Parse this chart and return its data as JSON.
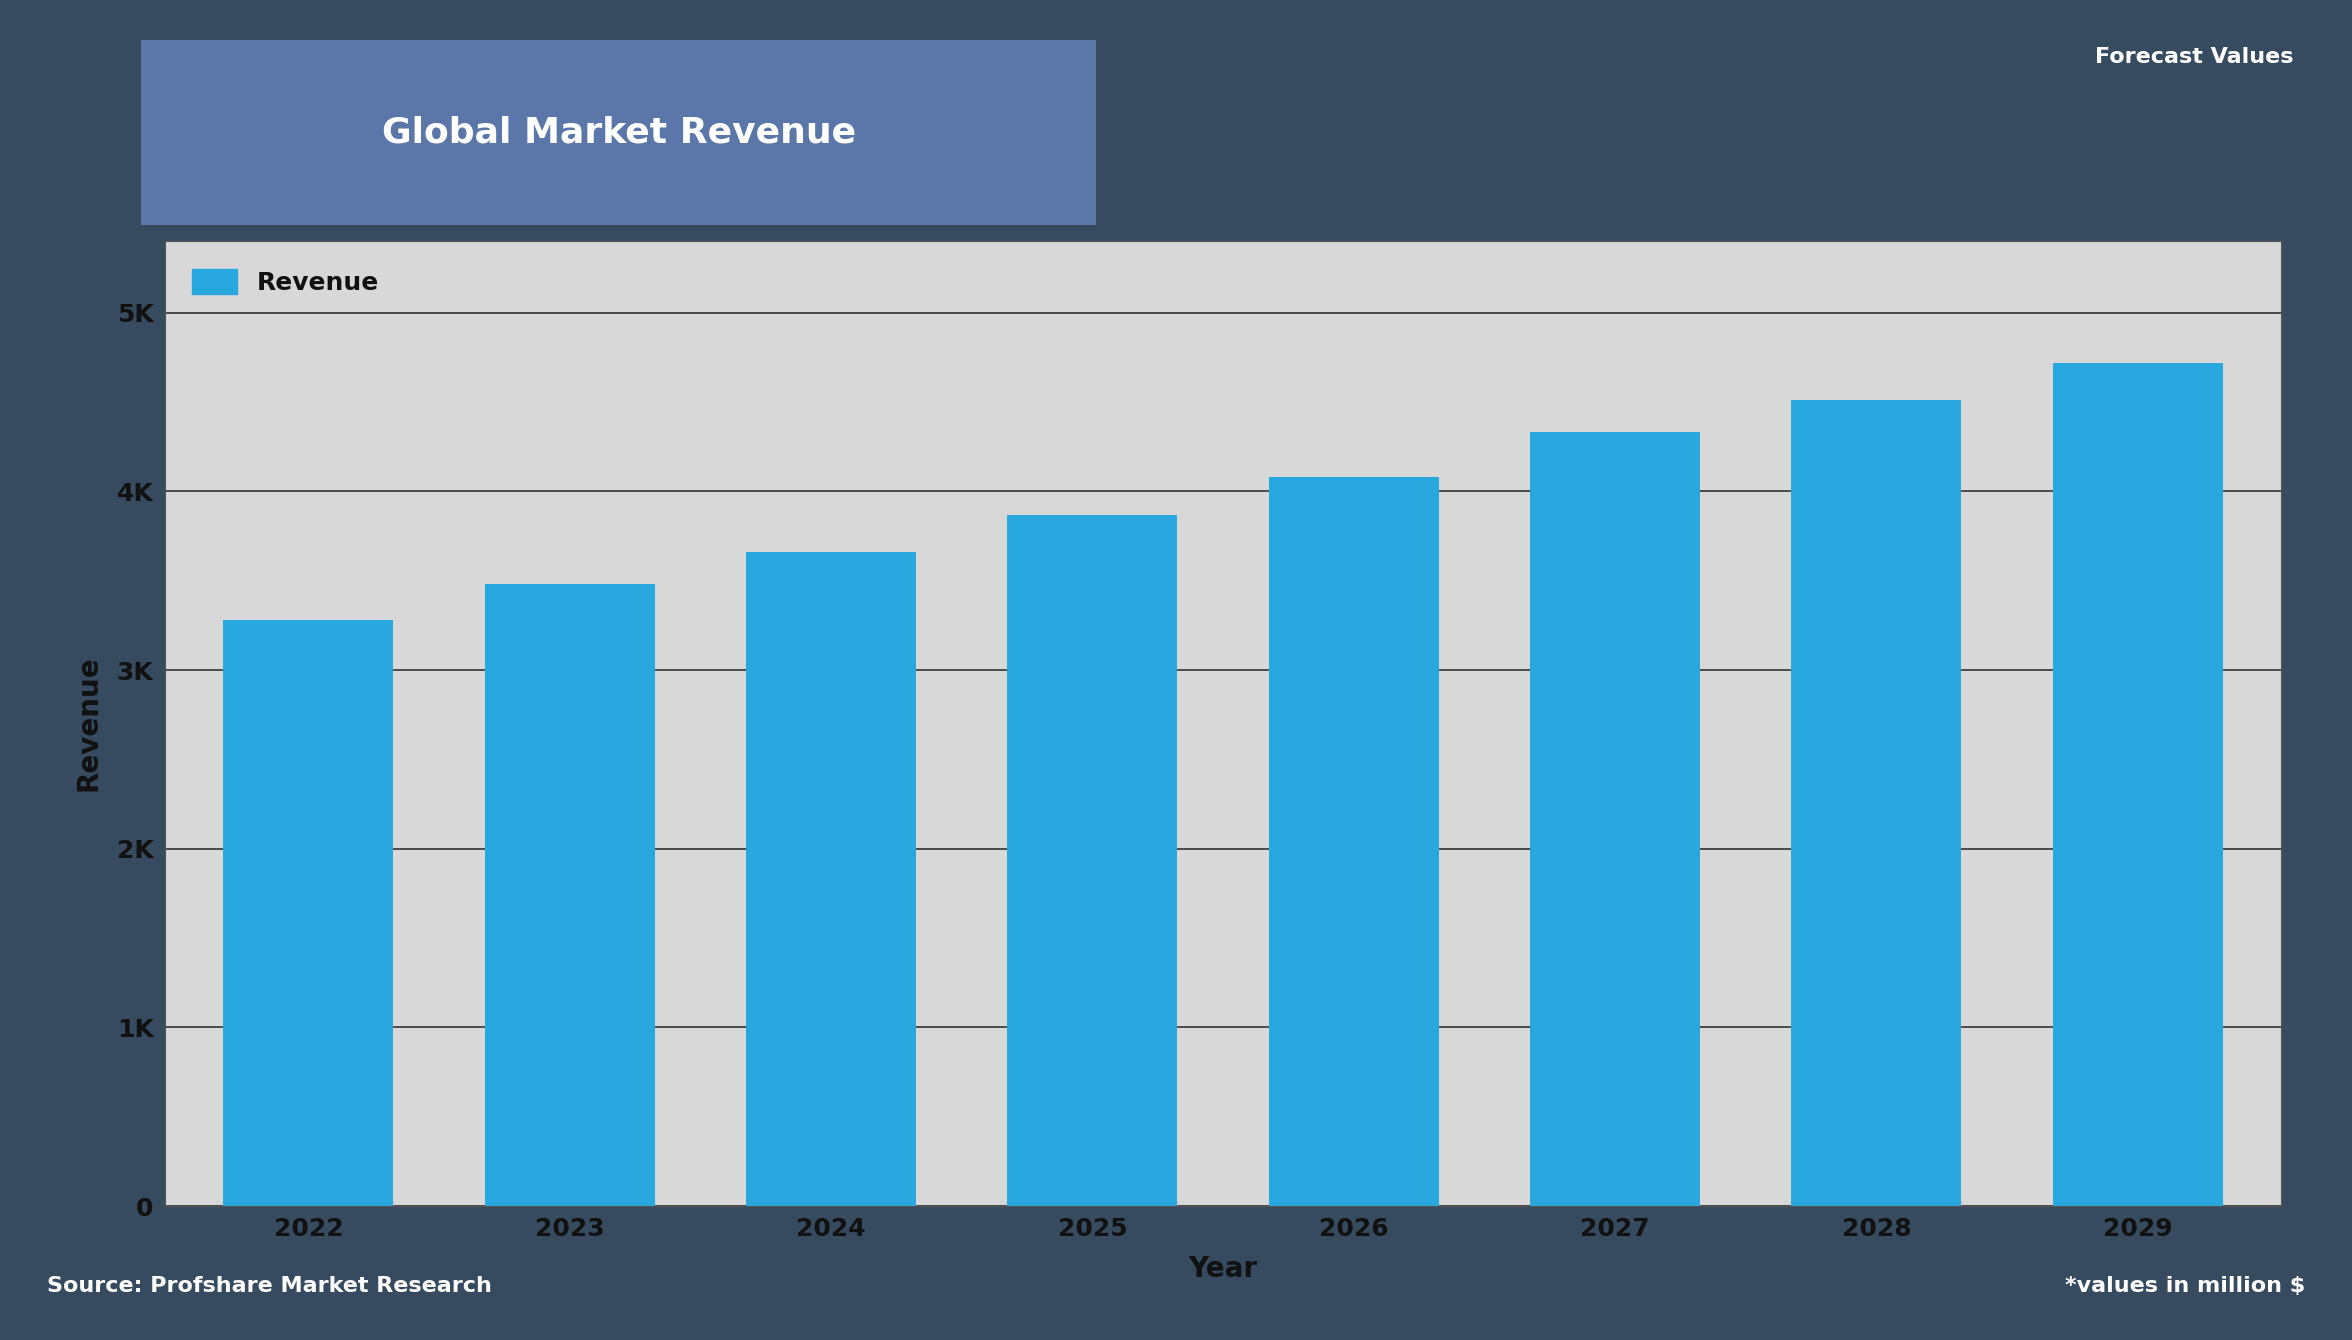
{
  "title": "Global Market Revenue",
  "xlabel": "Year",
  "ylabel": "Revenue",
  "legend_label": "Revenue",
  "forecast_label": "Forecast Values",
  "source_left": "Source: Profshare Market Research",
  "source_right": "*values in million $",
  "years": [
    2022,
    2023,
    2024,
    2025,
    2026,
    2027,
    2028,
    2029
  ],
  "values": [
    3280,
    3480,
    3660,
    3870,
    4080,
    4330,
    4510,
    4720
  ],
  "bar_color": "#29A8E0",
  "title_box_color": "#5B76A8",
  "figure_bg": "#374B60",
  "plot_bg": "#D8D8D8",
  "title_text_color": "#FFFFFF",
  "axis_text_color": "#111111",
  "grid_color": "#333333",
  "ylim": [
    0,
    5400
  ],
  "yticks": [
    0,
    1000,
    2000,
    3000,
    4000,
    5000
  ],
  "ytick_labels": [
    "0",
    "1K",
    "2K",
    "3K",
    "4K",
    "5K"
  ],
  "bar_width": 0.65,
  "title_fontsize": 26,
  "tick_fontsize": 18,
  "label_fontsize": 20,
  "legend_fontsize": 18,
  "footer_fontsize": 16,
  "forecast_fontsize": 16
}
